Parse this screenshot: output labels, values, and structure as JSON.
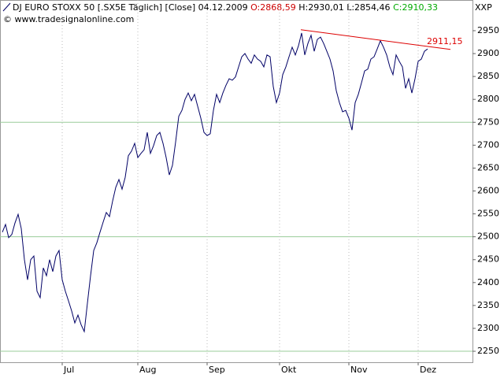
{
  "chart_data": {
    "type": "line",
    "header": {
      "instrument": "DJ EURO STOXX 50 [.SX5E  Täglich] [Close]",
      "date": "04.12.2009",
      "open": "O:2868,59",
      "high_low": "H:2930,01 L:2854,46",
      "close": "C:2910,33"
    },
    "copyright": "© www.tradesignalonline.com",
    "axis_label": "XXP",
    "series": [
      {
        "name": "DJ EURO STOXX 50",
        "color": "#000066",
        "values": [
          2510,
          2527,
          2498,
          2505,
          2530,
          2549,
          2518,
          2450,
          2406,
          2450,
          2458,
          2381,
          2367,
          2432,
          2415,
          2450,
          2424,
          2458,
          2470,
          2406,
          2381,
          2360,
          2338,
          2312,
          2329,
          2308,
          2293,
          2355,
          2415,
          2470,
          2487,
          2510,
          2532,
          2553,
          2544,
          2578,
          2608,
          2625,
          2604,
          2630,
          2677,
          2687,
          2704,
          2673,
          2682,
          2690,
          2728,
          2682,
          2699,
          2721,
          2728,
          2704,
          2673,
          2635,
          2656,
          2707,
          2763,
          2776,
          2800,
          2814,
          2797,
          2811,
          2785,
          2759,
          2728,
          2721,
          2725,
          2776,
          2811,
          2793,
          2814,
          2831,
          2845,
          2842,
          2849,
          2871,
          2893,
          2900,
          2888,
          2879,
          2897,
          2888,
          2883,
          2871,
          2897,
          2893,
          2828,
          2793,
          2814,
          2854,
          2871,
          2893,
          2914,
          2897,
          2917,
          2945,
          2897,
          2922,
          2940,
          2905,
          2931,
          2936,
          2922,
          2905,
          2888,
          2862,
          2819,
          2793,
          2773,
          2776,
          2759,
          2733,
          2793,
          2811,
          2836,
          2862,
          2866,
          2888,
          2893,
          2910,
          2928,
          2914,
          2897,
          2871,
          2854,
          2897,
          2883,
          2871,
          2824,
          2845,
          2814,
          2845,
          2883,
          2888,
          2905,
          2910
        ]
      }
    ],
    "xlim": [
      -0.75,
      149.25
    ],
    "xticks": [
      {
        "value": 19,
        "label": "Jul"
      },
      {
        "value": 43,
        "label": "Aug"
      },
      {
        "value": 65,
        "label": "Sep"
      },
      {
        "value": 88,
        "label": "Okt"
      },
      {
        "value": 110,
        "label": "Nov"
      },
      {
        "value": 132,
        "label": "Dez"
      }
    ],
    "ylim": [
      2226,
      3017
    ],
    "yticks": [
      2250,
      2300,
      2350,
      2400,
      2450,
      2500,
      2550,
      2600,
      2650,
      2700,
      2750,
      2800,
      2850,
      2900,
      2950
    ],
    "grid_lines": [
      2250,
      2500,
      2750
    ],
    "grid_color": "#99cc99",
    "annotations": [
      {
        "type": "trendline",
        "color": "#dd0000",
        "x": [
          94.75,
          142.25
        ],
        "y": [
          2952,
          2909
        ],
        "text": "2911,15"
      }
    ]
  }
}
